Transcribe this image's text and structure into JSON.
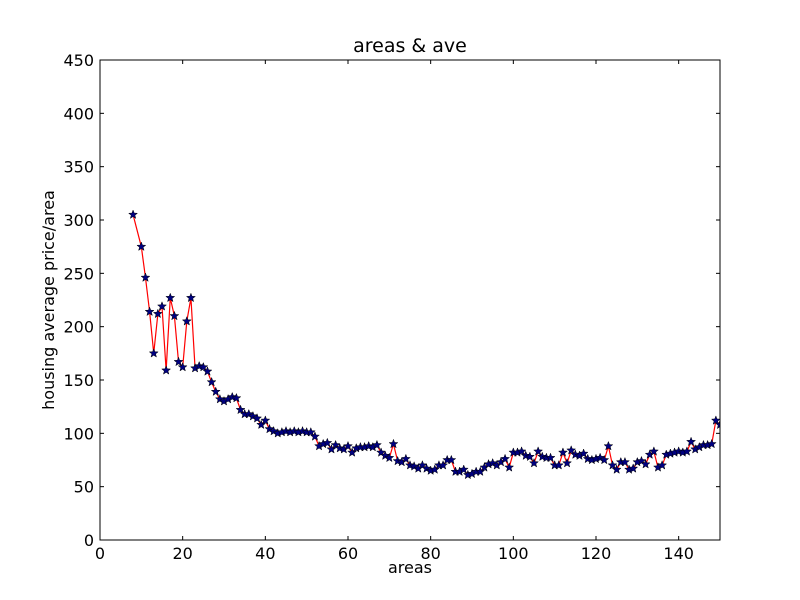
{
  "chart_data": {
    "type": "line",
    "title": "areas & ave",
    "xlabel": "areas",
    "ylabel": "housing average price/area",
    "xlim": [
      0,
      150
    ],
    "ylim": [
      0,
      450
    ],
    "xticks": [
      0,
      20,
      40,
      60,
      80,
      100,
      120,
      140
    ],
    "yticks": [
      0,
      50,
      100,
      150,
      200,
      250,
      300,
      350,
      400,
      450
    ],
    "grid": false,
    "line_color": "#ff0000",
    "marker": "star",
    "marker_fill": "#000080",
    "series": [
      {
        "x": [
          8,
          10,
          11,
          12,
          13,
          14,
          15,
          16,
          17,
          18,
          19,
          20,
          21,
          22,
          23,
          24,
          25,
          26,
          27,
          28,
          29,
          30,
          31,
          32,
          33,
          34,
          35,
          36,
          37,
          38,
          39,
          40,
          41,
          42,
          43,
          44,
          45,
          46,
          47,
          48,
          49,
          50,
          51,
          52,
          53,
          54,
          55,
          56,
          57,
          58,
          59,
          60,
          61,
          62,
          63,
          64,
          65,
          66,
          67,
          68,
          69,
          70,
          71,
          72,
          73,
          74,
          75,
          76,
          77,
          78,
          79,
          80,
          81,
          82,
          83,
          84,
          85,
          86,
          87,
          88,
          89,
          90,
          91,
          92,
          93,
          94,
          95,
          96,
          97,
          98,
          99,
          100,
          101,
          102,
          103,
          104,
          105,
          106,
          107,
          108,
          109,
          110,
          111,
          112,
          113,
          114,
          115,
          116,
          117,
          118,
          119,
          120,
          121,
          122,
          123,
          124,
          125,
          126,
          127,
          128,
          129,
          130,
          131,
          132,
          133,
          134,
          135,
          136,
          137,
          138,
          139,
          140,
          141,
          142,
          143,
          144,
          145,
          146,
          147,
          148,
          149,
          150
        ],
        "values": [
          305,
          275,
          246,
          214,
          175,
          212,
          219,
          159,
          227,
          210,
          167,
          162,
          205,
          227,
          161,
          163,
          162,
          158,
          148,
          139,
          132,
          130,
          132,
          134,
          133,
          122,
          118,
          118,
          116,
          114,
          108,
          112,
          104,
          102,
          100,
          101,
          102,
          101,
          102,
          101,
          102,
          101,
          101,
          97,
          88,
          90,
          91,
          85,
          89,
          86,
          85,
          88,
          82,
          86,
          87,
          87,
          88,
          87,
          89,
          82,
          79,
          77,
          90,
          74,
          73,
          76,
          70,
          69,
          67,
          70,
          67,
          65,
          66,
          70,
          70,
          75,
          75,
          64,
          64,
          66,
          61,
          62,
          64,
          64,
          68,
          71,
          72,
          70,
          73,
          76,
          68,
          82,
          82,
          83,
          79,
          78,
          72,
          83,
          78,
          77,
          77,
          70,
          70,
          82,
          72,
          84,
          80,
          79,
          81,
          76,
          75,
          76,
          77,
          75,
          88,
          70,
          66,
          73,
          73,
          66,
          67,
          73,
          74,
          71,
          80,
          83,
          68,
          70,
          80,
          81,
          82,
          83,
          82,
          83,
          92,
          85,
          87,
          89,
          89,
          90,
          112,
          108
        ]
      }
    ]
  }
}
